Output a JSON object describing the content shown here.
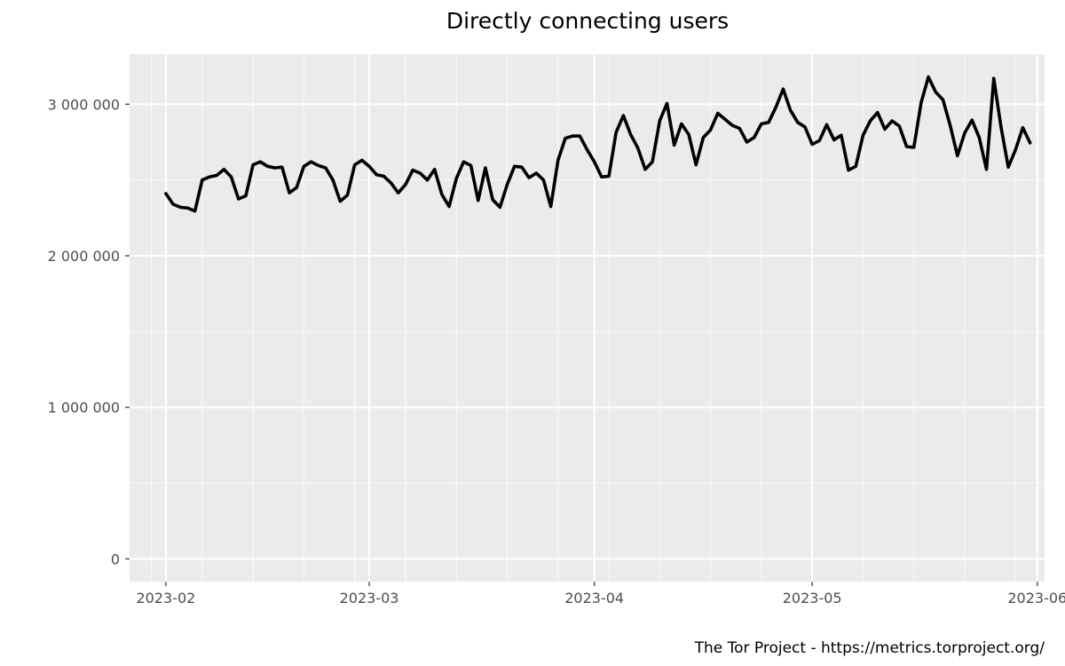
{
  "chart_data": {
    "type": "line",
    "title": "Directly connecting users",
    "caption": "The Tor Project - https://metrics.torproject.org/",
    "xlabel": "",
    "ylabel": "",
    "x_range": [
      "2023-01-27",
      "2023-06-02"
    ],
    "ylim": [
      -150000,
      3330000
    ],
    "y_ticks": [
      0,
      1000000,
      2000000,
      3000000
    ],
    "y_tick_labels": [
      "0",
      "1 000 000",
      "2 000 000",
      "3 000 000"
    ],
    "x_ticks": [
      "2023-02-01",
      "2023-03-01",
      "2023-04-01",
      "2023-05-01",
      "2023-06-01"
    ],
    "x_tick_labels": [
      "2023-02",
      "2023-03",
      "2023-04",
      "2023-05",
      "2023-06"
    ],
    "grid": true,
    "series": [
      {
        "color": "#000000",
        "start_date": "2023-02-01",
        "values": [
          2410000,
          2340000,
          2320000,
          2315000,
          2295000,
          2500000,
          2520000,
          2530000,
          2570000,
          2520000,
          2375000,
          2395000,
          2600000,
          2620000,
          2590000,
          2580000,
          2585000,
          2415000,
          2450000,
          2590000,
          2620000,
          2595000,
          2580000,
          2500000,
          2360000,
          2400000,
          2600000,
          2630000,
          2590000,
          2535000,
          2525000,
          2480000,
          2415000,
          2470000,
          2565000,
          2545000,
          2500000,
          2570000,
          2405000,
          2325000,
          2510000,
          2620000,
          2595000,
          2365000,
          2580000,
          2370000,
          2320000,
          2470000,
          2590000,
          2585000,
          2515000,
          2545000,
          2500000,
          2325000,
          2630000,
          2775000,
          2790000,
          2790000,
          2700000,
          2620000,
          2520000,
          2525000,
          2815000,
          2925000,
          2800000,
          2710000,
          2570000,
          2620000,
          2890000,
          3005000,
          2730000,
          2870000,
          2800000,
          2600000,
          2780000,
          2830000,
          2940000,
          2900000,
          2860000,
          2840000,
          2750000,
          2780000,
          2870000,
          2880000,
          2980000,
          3100000,
          2960000,
          2880000,
          2850000,
          2735000,
          2760000,
          2865000,
          2765000,
          2795000,
          2565000,
          2590000,
          2795000,
          2890000,
          2945000,
          2835000,
          2890000,
          2855000,
          2720000,
          2715000,
          3010000,
          3180000,
          3080000,
          3030000,
          2860000,
          2660000,
          2810000,
          2895000,
          2780000,
          2570000,
          3170000,
          2850000,
          2585000,
          2700000,
          2845000,
          2745000
        ]
      }
    ]
  }
}
